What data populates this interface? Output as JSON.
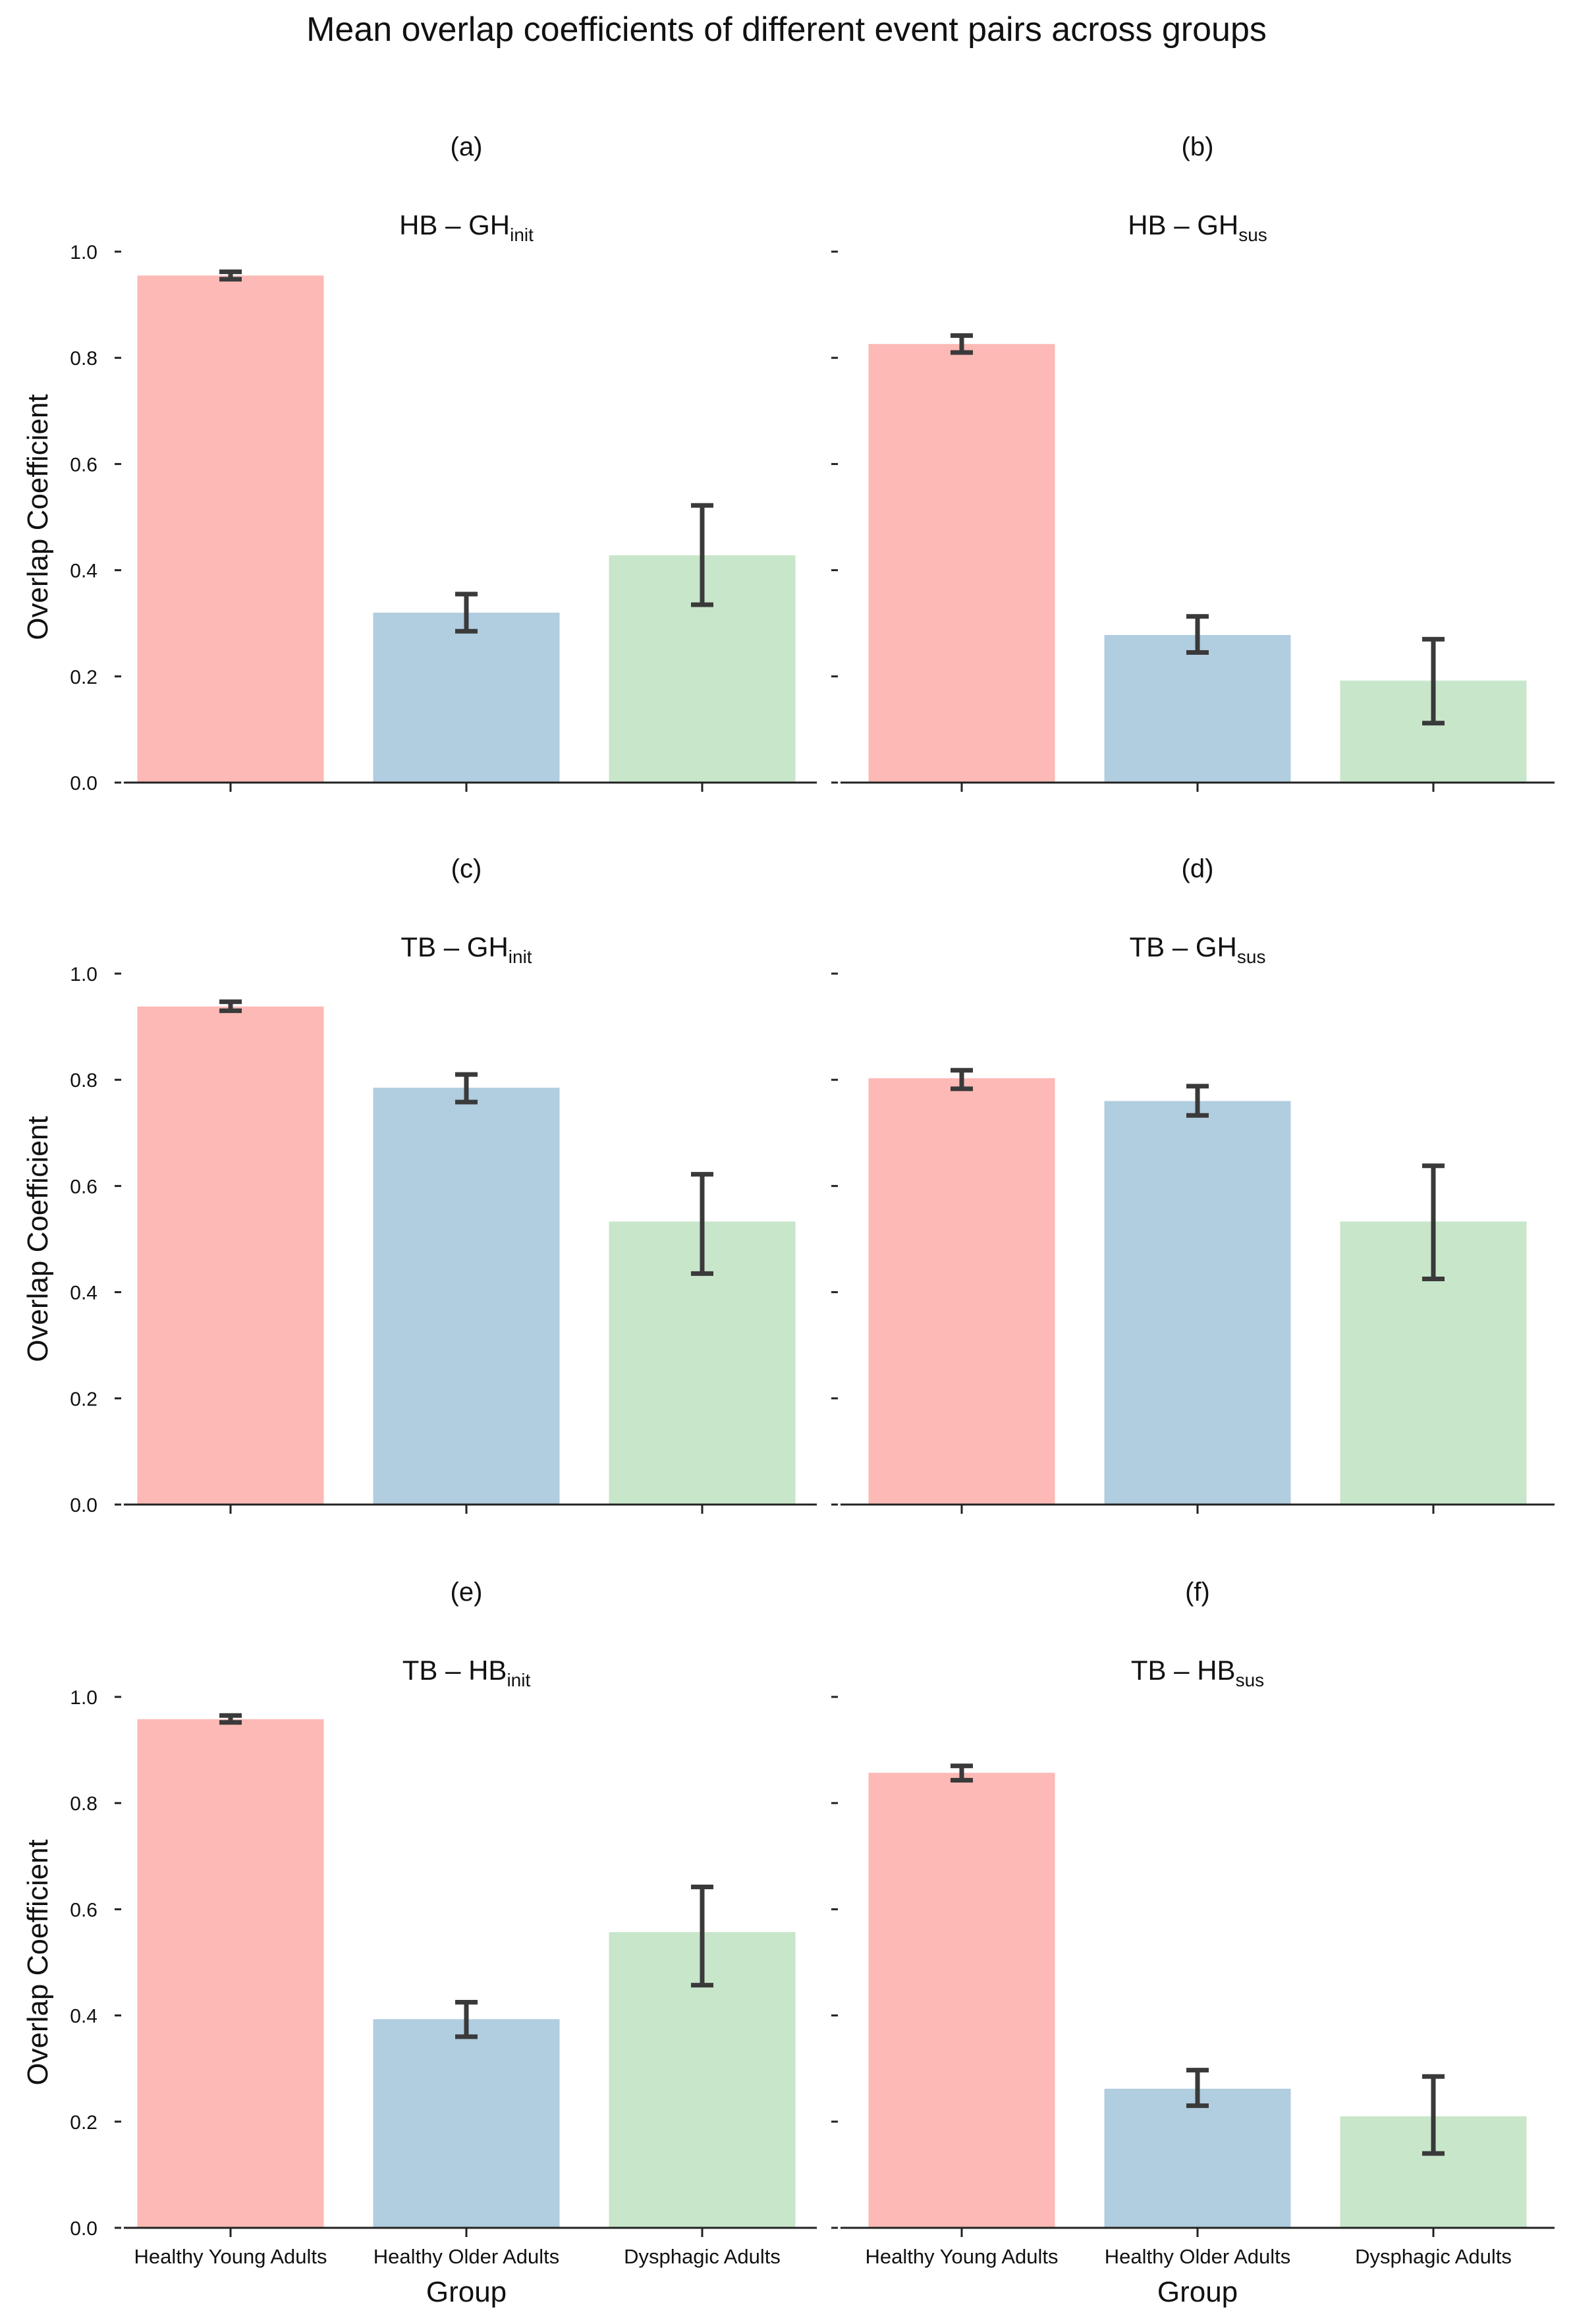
{
  "chart_data": {
    "type": "bar",
    "title": "Mean overlap coefficients of different event pairs across groups",
    "categories": [
      "Healthy Young Adults",
      "Healthy Older Adults",
      "Dysphagic Adults"
    ],
    "colors": [
      "#fcb9b6",
      "#b1cde0",
      "#c8e6ca"
    ],
    "ylabel": "Overlap Coefficient",
    "xlabel": "Group",
    "ylim": [
      0,
      1.0
    ],
    "yticks": [
      "0.0",
      "0.2",
      "0.4",
      "0.6",
      "0.8",
      "1.0"
    ],
    "panels": [
      {
        "label": "(a)",
        "title_main": "HB – GH",
        "title_sub": "init",
        "values": [
          0.955,
          0.32,
          0.428
        ],
        "errors": [
          [
            0.948,
            0.962
          ],
          [
            0.285,
            0.355
          ],
          [
            0.335,
            0.522
          ]
        ]
      },
      {
        "label": "(b)",
        "title_main": "HB – GH",
        "title_sub": "sus",
        "values": [
          0.826,
          0.278,
          0.192
        ],
        "errors": [
          [
            0.81,
            0.842
          ],
          [
            0.245,
            0.313
          ],
          [
            0.112,
            0.27
          ]
        ]
      },
      {
        "label": "(c)",
        "title_main": "TB – GH",
        "title_sub": "init",
        "values": [
          0.938,
          0.785,
          0.533
        ],
        "errors": [
          [
            0.93,
            0.947
          ],
          [
            0.758,
            0.81
          ],
          [
            0.435,
            0.622
          ]
        ]
      },
      {
        "label": "(d)",
        "title_main": "TB – GH",
        "title_sub": "sus",
        "values": [
          0.803,
          0.76,
          0.533
        ],
        "errors": [
          [
            0.783,
            0.818
          ],
          [
            0.733,
            0.788
          ],
          [
            0.425,
            0.638
          ]
        ]
      },
      {
        "label": "(e)",
        "title_main": "TB – HB",
        "title_sub": "init",
        "values": [
          0.958,
          0.393,
          0.557
        ],
        "errors": [
          [
            0.952,
            0.965
          ],
          [
            0.36,
            0.425
          ],
          [
            0.457,
            0.642
          ]
        ]
      },
      {
        "label": "(f)",
        "title_main": "TB – HB",
        "title_sub": "sus",
        "values": [
          0.857,
          0.262,
          0.21
        ],
        "errors": [
          [
            0.843,
            0.87
          ],
          [
            0.23,
            0.297
          ],
          [
            0.14,
            0.285
          ]
        ]
      }
    ]
  }
}
